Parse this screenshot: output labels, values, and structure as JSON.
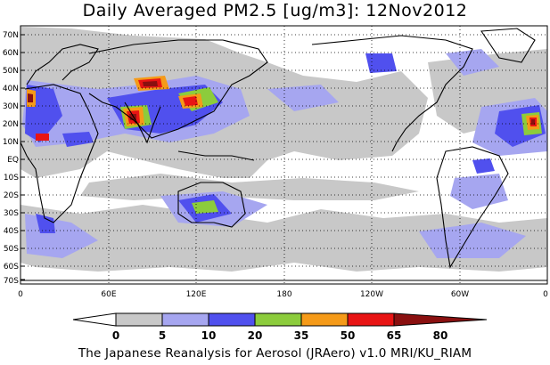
{
  "title": "Daily Averaged PM2.5 [ug/m3]: 12Nov2012",
  "credit": "The Japanese Reanalysis for Aerosol (JRAero) v1.0 MRI/KU_RIAM",
  "map": {
    "lat_labels": [
      "70N",
      "60N",
      "50N",
      "40N",
      "30N",
      "20N",
      "10N",
      "EQ",
      "10S",
      "20S",
      "30S",
      "40S",
      "50S",
      "60S",
      "70S"
    ],
    "lon_labels": [
      "0",
      "60E",
      "120E",
      "180",
      "120W",
      "60W",
      "0"
    ],
    "grid": "dotted"
  },
  "colorbar": {
    "labels": [
      "0",
      "5",
      "10",
      "20",
      "35",
      "50",
      "65",
      "80"
    ],
    "colors": [
      "#ffffff",
      "#c8c8c8",
      "#a6a6f0",
      "#5050ee",
      "#8ccc3c",
      "#f59a18",
      "#e81414",
      "#8a1010"
    ]
  }
}
